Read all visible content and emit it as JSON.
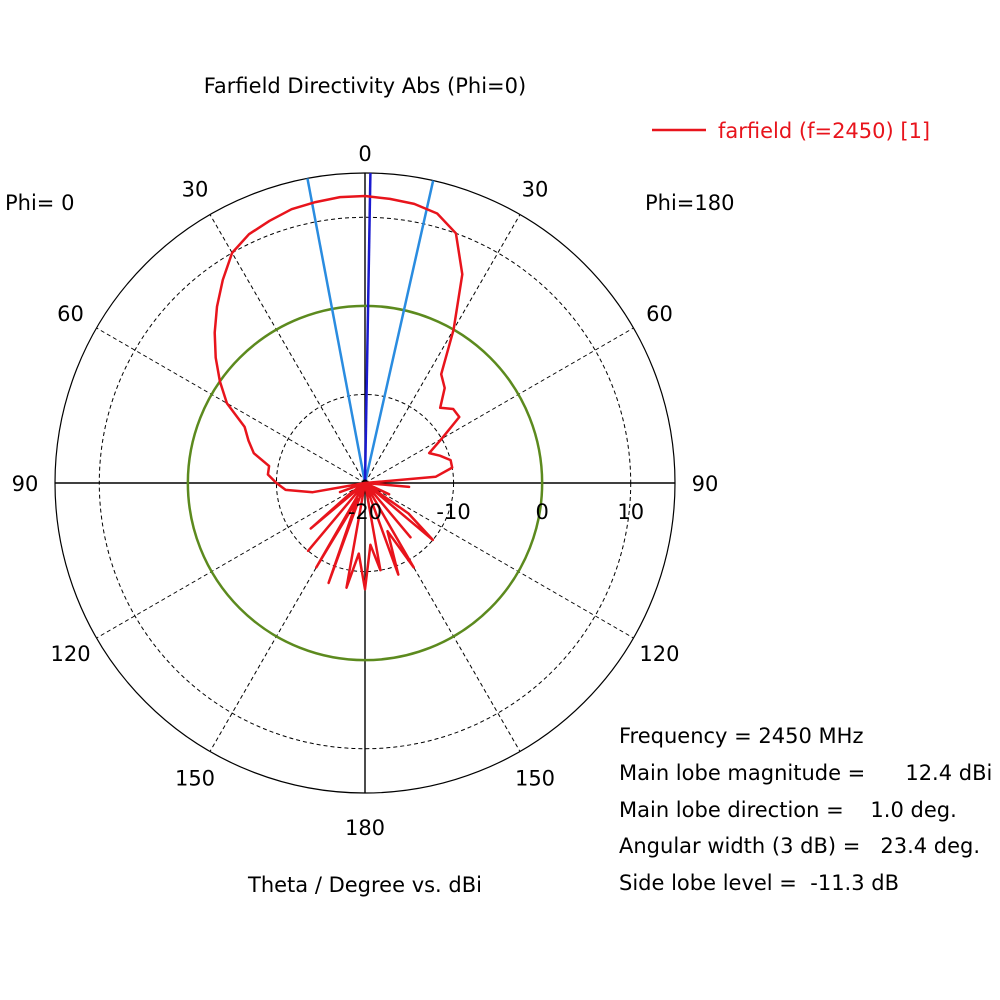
{
  "chart_data": {
    "type": "polar",
    "title": "Farfield Directivity Abs (Phi=0)",
    "xlabel": "Theta / Degree vs. dBi",
    "left_label": "Phi=  0",
    "right_label": "Phi=180",
    "theta_ticks": {
      "top": "0",
      "bottom": "180",
      "left": [
        "30",
        "60",
        "90",
        "120",
        "150"
      ],
      "right": [
        "30",
        "60",
        "90",
        "120",
        "150"
      ]
    },
    "radial_ticks": [
      "-20",
      "-10",
      "0",
      "10"
    ],
    "radial_range_db": [
      -20,
      15
    ],
    "grid": true,
    "legend_position": "top-right",
    "series": [
      {
        "name": "farfield (f=2450) [1]",
        "color": "#e8141c",
        "theta_deg": [
          -180,
          -175,
          -170,
          -165,
          -160,
          -155,
          -150,
          -145,
          -140,
          -135,
          -130,
          -125,
          -120,
          -115,
          -110,
          -105,
          -100,
          -95,
          -90,
          -85,
          -80,
          -75,
          -70,
          -65,
          -60,
          -55,
          -50,
          -45,
          -40,
          -35,
          -30,
          -25,
          -20,
          -15,
          -10,
          -5,
          0,
          5,
          10,
          15,
          20,
          25,
          30,
          35,
          40,
          45,
          50,
          55,
          60,
          65,
          70,
          75,
          80,
          85,
          90,
          95,
          100,
          105,
          110,
          115,
          120,
          125,
          130,
          135,
          140,
          145,
          150,
          155,
          160,
          165,
          170,
          175,
          180
        ],
        "gain_dbi": [
          -8,
          -12,
          -8,
          -20,
          -8,
          -18,
          -9,
          -20,
          -10,
          -20,
          -12,
          -18,
          -20,
          -20,
          -17,
          -20,
          -14,
          -11,
          -10,
          -9,
          -9,
          -7,
          -6,
          -5,
          -2,
          0,
          2,
          4,
          6,
          8,
          10,
          11,
          11.5,
          12,
          12.2,
          12.4,
          12.4,
          12.2,
          12,
          11.5,
          10,
          6,
          0,
          -5,
          -6,
          -8,
          -7,
          -7,
          -10,
          -12,
          -11,
          -10,
          -10,
          -12,
          -20,
          -15,
          -20,
          -20,
          -20,
          -17,
          -20,
          -14,
          -10,
          -20,
          -12,
          -20,
          -9,
          -14,
          -9,
          -20,
          -10,
          -13,
          -8
        ]
      }
    ],
    "reference_circle_db": 0,
    "main_lobe_direction_deg": 1.0,
    "beamwidth_3db_deg": 23.4,
    "info": [
      {
        "label": "Frequency = 2450 MHz"
      },
      {
        "label": "Main lobe magnitude =      12.4 dBi"
      },
      {
        "label": "Main lobe direction =    1.0 deg."
      },
      {
        "label": "Angular width (3 dB) =   23.4 deg."
      },
      {
        "label": "Side lobe level =  -11.3 dB"
      }
    ],
    "colors": {
      "pattern": "#e8141c",
      "reference_circle": "#5c8a1e",
      "beamwidth_lines": "#2a8ce0",
      "main_lobe_line": "#1a1ad0",
      "grid": "#000000"
    }
  }
}
